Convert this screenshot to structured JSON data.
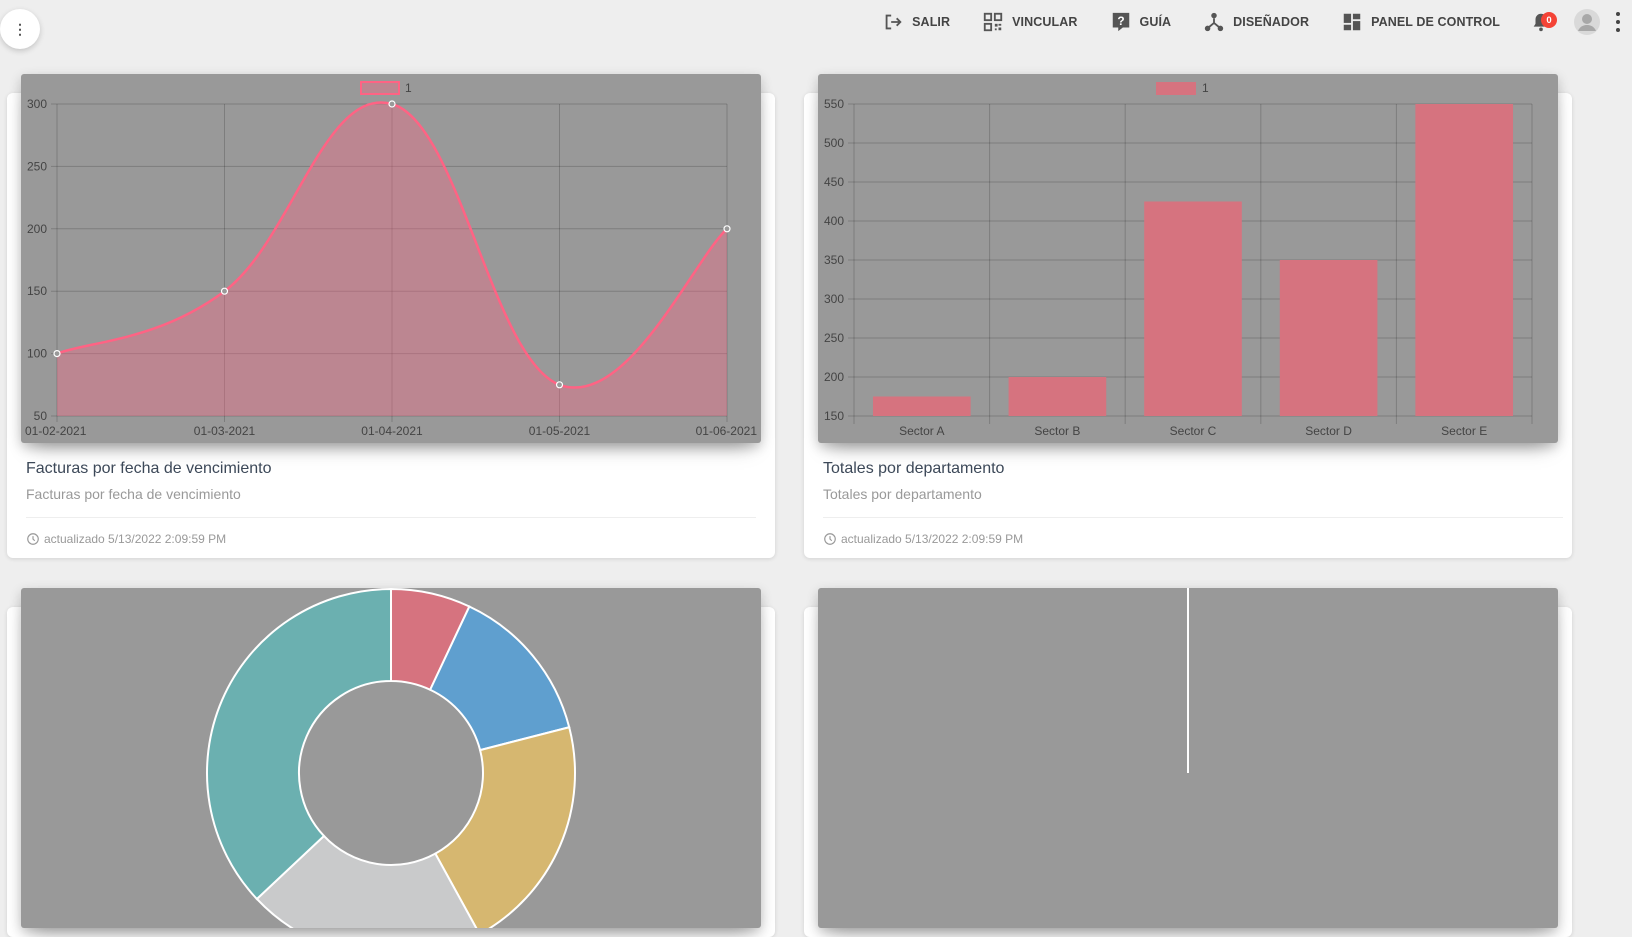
{
  "nav": {
    "items": [
      {
        "label": "SALIR",
        "icon": "logout-icon"
      },
      {
        "label": "VINCULAR",
        "icon": "qr-code-icon"
      },
      {
        "label": "GUÍA",
        "icon": "help-icon"
      },
      {
        "label": "DISEÑADOR",
        "icon": "designer-icon"
      },
      {
        "label": "PANEL DE CONTROL",
        "icon": "dashboard-icon"
      }
    ],
    "notifications_count": "0"
  },
  "menu_button_label": "⋮",
  "cards": [
    {
      "title": "Facturas por fecha de vencimiento",
      "category": "Facturas por fecha de vencimiento",
      "footer": "actualizado 5/13/2022 2:09:59 PM"
    },
    {
      "title": "Totales por departamento",
      "category": "Totales por departamento",
      "footer": "actualizado 5/13/2022 2:09:59 PM"
    }
  ],
  "colors": {
    "chart_background": "#999999",
    "series_line": "#ff6384",
    "series_fill": "rgba(255,99,132,0.35)",
    "bar_fill": "#d6737f",
    "notification_badge": "#f44336"
  },
  "chart_data": [
    {
      "type": "line",
      "legend": "1",
      "x": [
        "01-02-2021",
        "01-03-2021",
        "01-04-2021",
        "01-05-2021",
        "01-06-2021"
      ],
      "series": [
        {
          "name": "1",
          "values": [
            100,
            150,
            300,
            75,
            200
          ]
        }
      ],
      "yticks": [
        50,
        100,
        150,
        200,
        250,
        300
      ],
      "ylim": [
        50,
        300
      ],
      "fill": true,
      "grid": true,
      "legend_position": "top"
    },
    {
      "type": "bar",
      "legend": "1",
      "categories": [
        "Sector A",
        "Sector B",
        "Sector C",
        "Sector D",
        "Sector E"
      ],
      "series": [
        {
          "name": "1",
          "values": [
            175,
            200,
            425,
            350,
            550
          ]
        }
      ],
      "yticks": [
        150,
        200,
        250,
        300,
        350,
        400,
        450,
        500,
        550
      ],
      "ylim": [
        150,
        550
      ],
      "grid": true,
      "legend_position": "top"
    },
    {
      "type": "pie",
      "subtype": "doughnut",
      "values": [
        7,
        14,
        21,
        21,
        37
      ],
      "colors": [
        "#d6737f",
        "#5f9fcf",
        "#d6b770",
        "#c9cacb",
        "#6bb0b0"
      ]
    },
    {
      "type": "bar",
      "categories": [],
      "series": [],
      "note_visual_only": true
    }
  ]
}
